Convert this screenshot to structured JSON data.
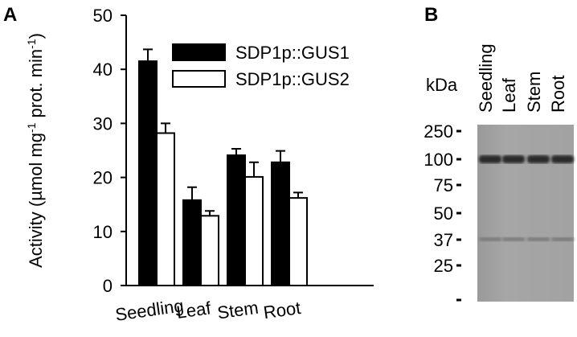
{
  "chart_data": {
    "type": "bar",
    "panel_label": "A",
    "y_label_parts": [
      "Activity (µmol mg",
      "-1",
      " prot. min",
      "-1",
      ")"
    ],
    "categories": [
      "Seedling",
      "Leaf",
      "Stem",
      "Root"
    ],
    "series": [
      {
        "name": "SDP1p::GUS1",
        "color": "#000000",
        "values": [
          41.5,
          15.8,
          24.1,
          22.8
        ],
        "errors": [
          2.2,
          2.4,
          1.2,
          2.1
        ]
      },
      {
        "name": "SDP1p::GUS2",
        "color": "#ffffff",
        "values": [
          28.2,
          12.9,
          20.1,
          16.2
        ],
        "errors": [
          1.8,
          0.9,
          2.7,
          1.0
        ]
      }
    ],
    "ylim": [
      0,
      50
    ],
    "yticks": [
      0,
      10,
      20,
      30,
      40,
      50
    ]
  },
  "blot": {
    "panel_label": "B",
    "unit_label": "kDa",
    "lanes": [
      "Seedling",
      "Leaf",
      "Stem",
      "Root"
    ],
    "markers": [
      "250",
      "100",
      "75",
      "50",
      "37",
      "25"
    ]
  }
}
